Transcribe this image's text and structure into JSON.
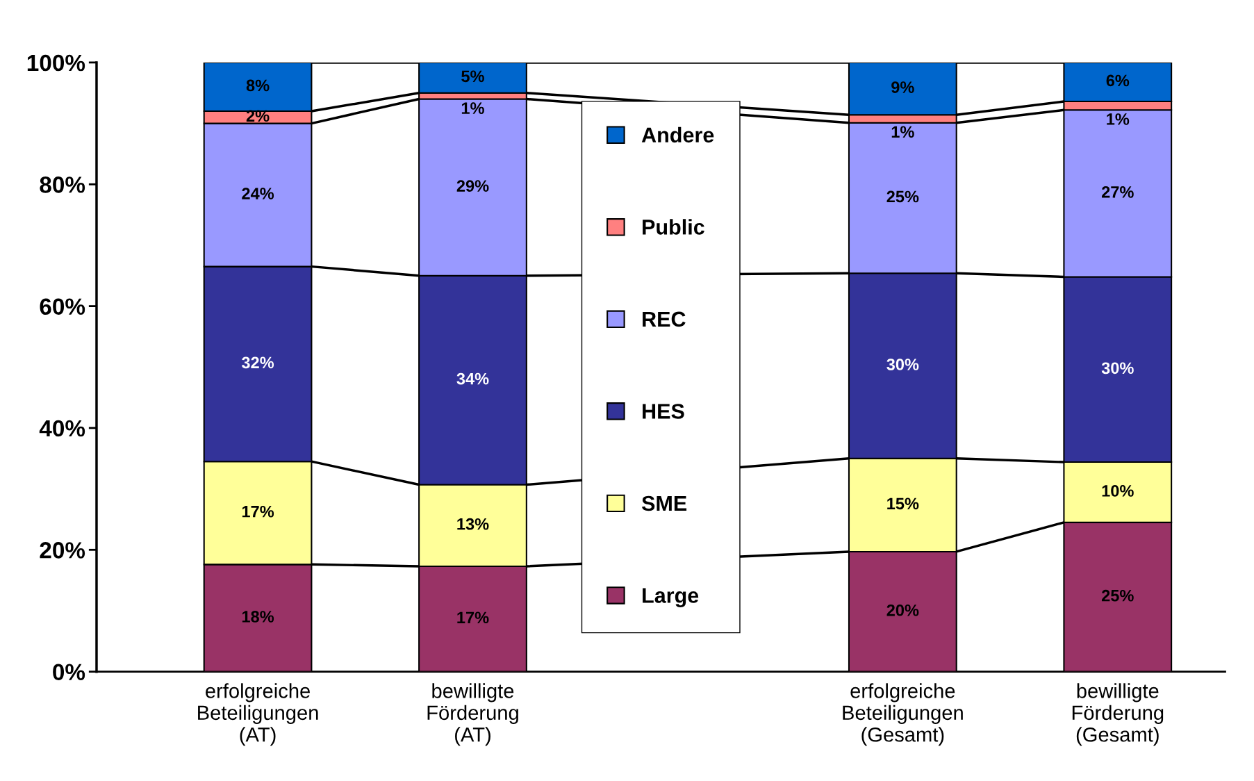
{
  "chart_data": {
    "type": "bar",
    "stacked": true,
    "categories": [
      "erfolgreiche\nBeteiligungen\n(AT)",
      "bewilligte\nFörderung\n(AT)",
      null,
      "erfolgreiche\nBeteiligungen\n(Gesamt)",
      "bewilligte\nFörderung\n(Gesamt)"
    ],
    "series": [
      {
        "name": "Large",
        "color": "#993366",
        "values": [
          17.6,
          17.3,
          null,
          19.7,
          24.5
        ],
        "value_labels": [
          "18%",
          "17%",
          null,
          "20%",
          "25%"
        ]
      },
      {
        "name": "SME",
        "color": "#ffff99",
        "values": [
          16.9,
          13.4,
          null,
          15.3,
          9.9
        ],
        "value_labels": [
          "17%",
          "13%",
          null,
          "15%",
          "10%"
        ]
      },
      {
        "name": "HES",
        "color": "#333399",
        "values": [
          32.0,
          34.3,
          null,
          30.4,
          30.4
        ],
        "value_labels": [
          "32%",
          "34%",
          null,
          "30%",
          "30%"
        ]
      },
      {
        "name": "REC",
        "color": "#9999ff",
        "values": [
          23.5,
          29.0,
          null,
          24.7,
          27.4
        ],
        "value_labels": [
          "24%",
          "29%",
          null,
          "25%",
          "27%"
        ]
      },
      {
        "name": "Public",
        "color": "#ff8080",
        "values": [
          2.0,
          1.0,
          null,
          1.3,
          1.4
        ],
        "value_labels": [
          "2%",
          "1%",
          null,
          "1%",
          "1%"
        ]
      },
      {
        "name": "Andere",
        "color": "#0066cc",
        "values": [
          8.0,
          5.0,
          null,
          8.6,
          6.4
        ],
        "value_labels": [
          "8%",
          "5%",
          null,
          "9%",
          "6%"
        ]
      }
    ],
    "ylim": [
      0,
      100
    ],
    "yticks": [
      {
        "value": 0,
        "label": "0%"
      },
      {
        "value": 20,
        "label": "20%"
      },
      {
        "value": 40,
        "label": "40%"
      },
      {
        "value": 60,
        "label": "60%"
      },
      {
        "value": 80,
        "label": "80%"
      },
      {
        "value": 100,
        "label": "100%"
      }
    ],
    "grid": false,
    "legend": "center"
  }
}
